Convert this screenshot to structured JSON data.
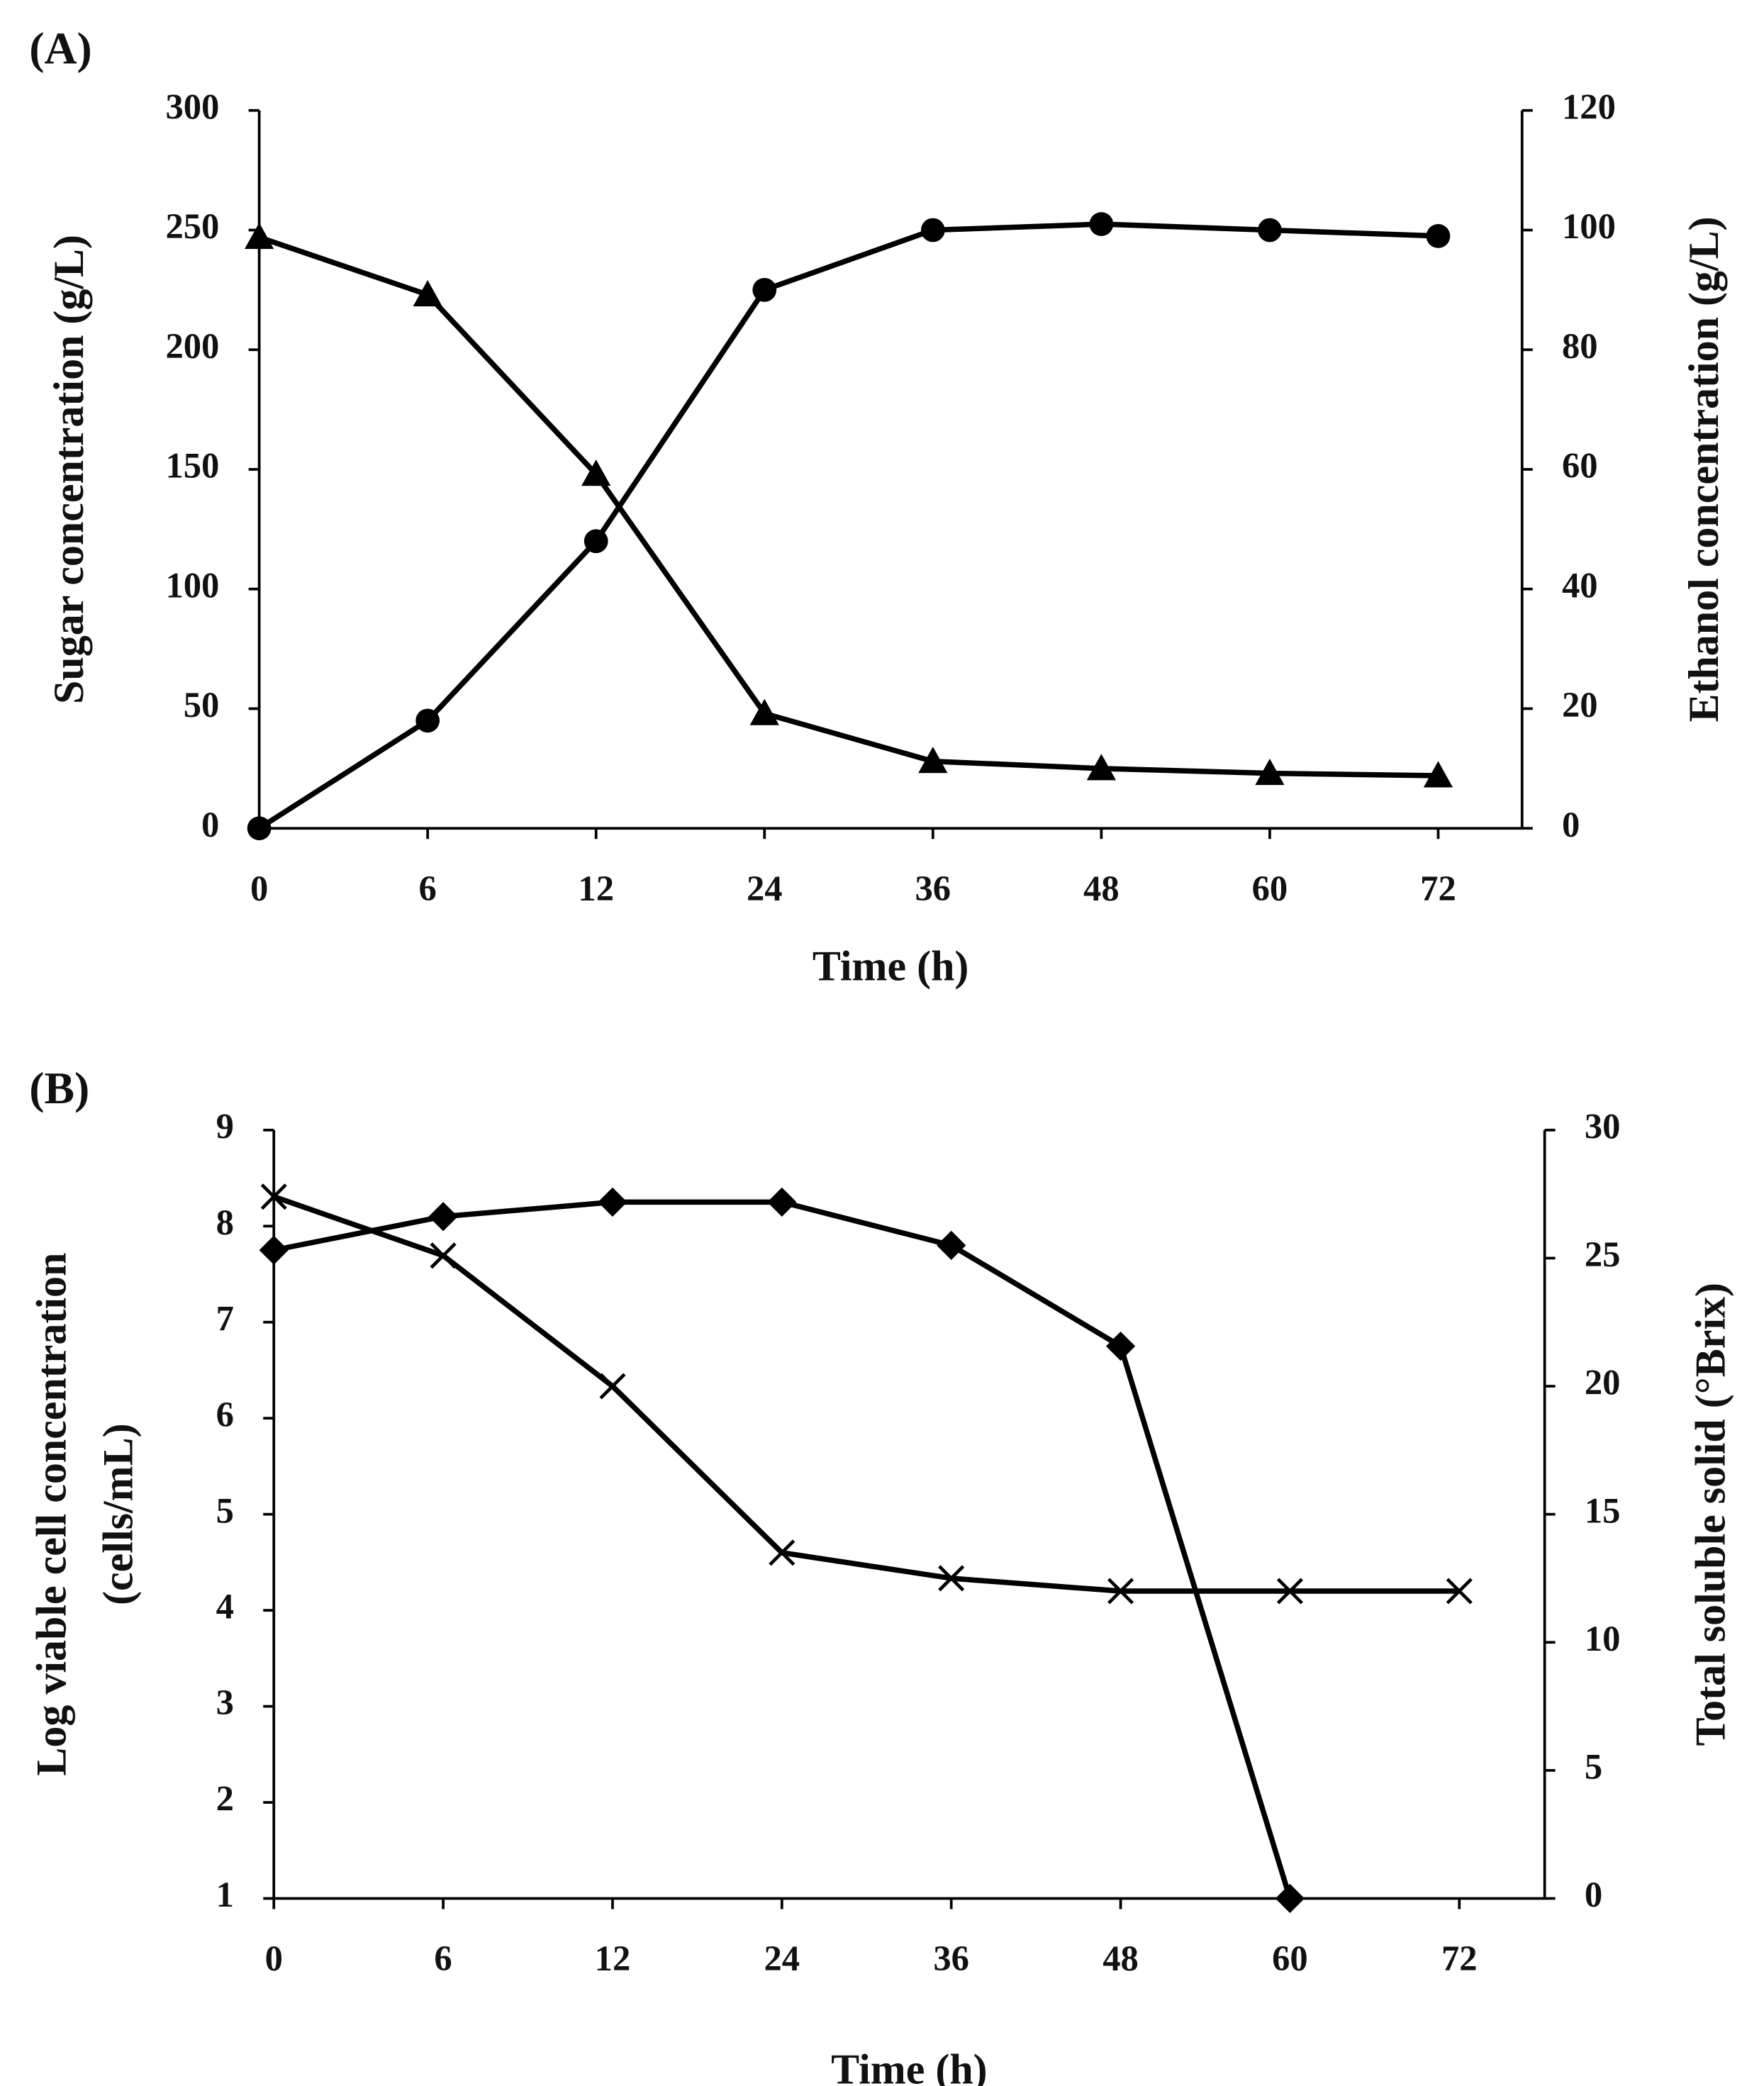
{
  "chart_data": [
    {
      "type": "line",
      "panel": "(A)",
      "xlabel": "Time (h)",
      "ylabel": [
        "Sugar concentration (g/L)"
      ],
      "y2label": [
        "Ethanol concentration (g/L)"
      ],
      "categories": [
        "0",
        "6",
        "12",
        "24",
        "36",
        "48",
        "60",
        "72"
      ],
      "ylim": [
        0,
        300
      ],
      "yticks": [
        0,
        50,
        100,
        150,
        200,
        250,
        300
      ],
      "y2lim": [
        0,
        120
      ],
      "y2ticks": [
        0,
        20,
        40,
        60,
        80,
        100,
        120
      ],
      "series": [
        {
          "color": "#000000",
          "marker": "triangle",
          "axis": "y",
          "values": [
            247,
            223,
            148,
            48,
            28,
            25,
            23,
            22
          ]
        },
        {
          "color": "#000000",
          "marker": "circle",
          "axis": "y2",
          "values": [
            0,
            18,
            48,
            90,
            100,
            101,
            100,
            99
          ]
        }
      ]
    },
    {
      "type": "line",
      "panel": "(B)",
      "xlabel": "Time (h)",
      "ylabel": [
        "Log viable cell concentration",
        "(cells/mL)"
      ],
      "y2label": [
        "Total soluble solid (°Brix)"
      ],
      "categories": [
        "0",
        "6",
        "12",
        "24",
        "36",
        "48",
        "60",
        "72"
      ],
      "ylim": [
        1,
        9
      ],
      "yticks": [
        1,
        2,
        3,
        4,
        5,
        6,
        7,
        8,
        9
      ],
      "y2lim": [
        0,
        30
      ],
      "y2ticks": [
        0,
        5,
        10,
        15,
        20,
        25,
        30
      ],
      "series": [
        {
          "color": "#000000",
          "marker": "diamond",
          "axis": "y",
          "values": [
            7.75,
            8.1,
            8.25,
            8.25,
            7.8,
            6.75,
            1,
            null
          ]
        },
        {
          "color": "#000000",
          "marker": "cross",
          "axis": "y2",
          "values": [
            27.4,
            25.1,
            20,
            13.5,
            12.5,
            12,
            12,
            12
          ]
        }
      ]
    }
  ]
}
